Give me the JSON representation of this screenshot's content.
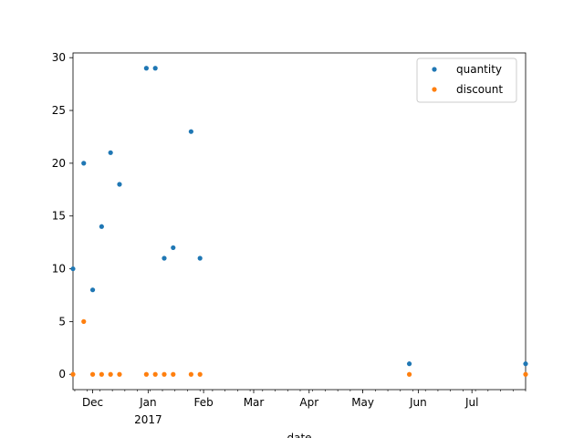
{
  "chart_data": {
    "type": "scatter",
    "xlabel": "date",
    "ylabel": "",
    "title": "",
    "x_type": "date",
    "xlim": [
      "2016-11-20",
      "2017-07-31"
    ],
    "ylim": [
      -1.45,
      30.45
    ],
    "y_ticks": [
      0,
      5,
      10,
      15,
      20,
      25,
      30
    ],
    "x_major_ticks": [
      {
        "date": "2016-12-01",
        "label": "Dec"
      },
      {
        "date": "2017-01-01",
        "label": "Jan",
        "sublabel": "2017"
      },
      {
        "date": "2017-02-01",
        "label": "Feb"
      },
      {
        "date": "2017-03-01",
        "label": "Mar"
      },
      {
        "date": "2017-04-01",
        "label": "Apr"
      },
      {
        "date": "2017-05-01",
        "label": "May"
      },
      {
        "date": "2017-06-01",
        "label": "Jun"
      },
      {
        "date": "2017-07-01",
        "label": "Jul"
      }
    ],
    "legend_placement": "top-right",
    "grid": false,
    "series": [
      {
        "name": "quantity",
        "color": "#1f77b4",
        "points": [
          {
            "x": "2016-11-20",
            "y": 10
          },
          {
            "x": "2016-11-26",
            "y": 20
          },
          {
            "x": "2016-12-01",
            "y": 8
          },
          {
            "x": "2016-12-06",
            "y": 14
          },
          {
            "x": "2016-12-11",
            "y": 21
          },
          {
            "x": "2016-12-16",
            "y": 18
          },
          {
            "x": "2016-12-31",
            "y": 29
          },
          {
            "x": "2017-01-05",
            "y": 29
          },
          {
            "x": "2017-01-10",
            "y": 11
          },
          {
            "x": "2017-01-15",
            "y": 12
          },
          {
            "x": "2017-01-25",
            "y": 23
          },
          {
            "x": "2017-01-30",
            "y": 11
          },
          {
            "x": "2017-05-27",
            "y": 1
          },
          {
            "x": "2017-07-31",
            "y": 1
          }
        ]
      },
      {
        "name": "discount",
        "color": "#ff7f0e",
        "points": [
          {
            "x": "2016-11-20",
            "y": 0
          },
          {
            "x": "2016-11-26",
            "y": 5
          },
          {
            "x": "2016-12-01",
            "y": 0
          },
          {
            "x": "2016-12-06",
            "y": 0
          },
          {
            "x": "2016-12-11",
            "y": 0
          },
          {
            "x": "2016-12-16",
            "y": 0
          },
          {
            "x": "2016-12-31",
            "y": 0
          },
          {
            "x": "2017-01-05",
            "y": 0
          },
          {
            "x": "2017-01-10",
            "y": 0
          },
          {
            "x": "2017-01-15",
            "y": 0
          },
          {
            "x": "2017-01-25",
            "y": 0
          },
          {
            "x": "2017-01-30",
            "y": 0
          },
          {
            "x": "2017-05-27",
            "y": 0
          },
          {
            "x": "2017-07-31",
            "y": 0
          }
        ]
      }
    ]
  }
}
